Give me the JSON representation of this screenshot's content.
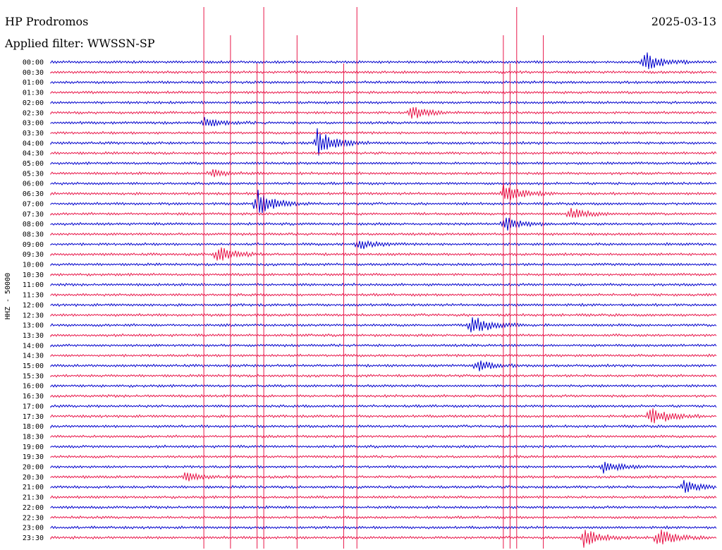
{
  "header": {
    "station": "HP Prodromos",
    "date": "2025-03-13",
    "filter": "Applied filter: WWSSN-SP"
  },
  "chart_data": {
    "type": "line",
    "title": "HP Prodromos",
    "ylabel": "HHZ - 50000",
    "row_labels": [
      "00:00",
      "00:30",
      "01:00",
      "01:30",
      "02:00",
      "02:30",
      "03:00",
      "03:30",
      "04:00",
      "04:30",
      "05:00",
      "05:30",
      "06:00",
      "06:30",
      "07:00",
      "07:30",
      "08:00",
      "08:30",
      "09:00",
      "09:30",
      "10:00",
      "10:30",
      "11:00",
      "11:30",
      "12:00",
      "12:30",
      "13:00",
      "13:30",
      "14:00",
      "14:30",
      "15:00",
      "15:30",
      "16:00",
      "16:30",
      "17:00",
      "17:30",
      "18:00",
      "18:30",
      "19:00",
      "19:30",
      "20:00",
      "20:30",
      "21:00",
      "21:30",
      "22:00",
      "22:30",
      "23:00",
      "23:30"
    ],
    "colors": {
      "odd": "#0000cc",
      "even": "#e8174a"
    },
    "events": [
      {
        "row": "00:00",
        "pos": 0.89,
        "amp": 16,
        "color": "blue"
      },
      {
        "row": "02:30",
        "pos": 0.54,
        "amp": 10,
        "color": "red"
      },
      {
        "row": "03:00",
        "pos": 0.23,
        "amp": 8,
        "color": "blue"
      },
      {
        "row": "04:00",
        "pos": 0.4,
        "amp": 20,
        "color": "blue"
      },
      {
        "row": "05:30",
        "pos": 0.24,
        "amp": 6,
        "color": "red"
      },
      {
        "row": "06:30",
        "pos": 0.68,
        "amp": 16,
        "color": "red"
      },
      {
        "row": "07:00",
        "pos": 0.31,
        "amp": 20,
        "color": "blue"
      },
      {
        "row": "07:30",
        "pos": 0.78,
        "amp": 9,
        "color": "red"
      },
      {
        "row": "08:00",
        "pos": 0.68,
        "amp": 11,
        "color": "blue"
      },
      {
        "row": "09:00",
        "pos": 0.46,
        "amp": 8,
        "color": "blue"
      },
      {
        "row": "09:30",
        "pos": 0.25,
        "amp": 13,
        "color": "red"
      },
      {
        "row": "13:00",
        "pos": 0.63,
        "amp": 18,
        "color": "blue"
      },
      {
        "row": "15:00",
        "pos": 0.64,
        "amp": 8,
        "color": "blue"
      },
      {
        "row": "17:30",
        "pos": 0.9,
        "amp": 17,
        "color": "red"
      },
      {
        "row": "20:00",
        "pos": 0.83,
        "amp": 9,
        "color": "blue"
      },
      {
        "row": "20:30",
        "pos": 0.2,
        "amp": 6,
        "color": "red"
      },
      {
        "row": "21:00",
        "pos": 0.95,
        "amp": 9,
        "color": "blue"
      },
      {
        "row": "23:30",
        "pos": 0.8,
        "amp": 14,
        "color": "red"
      },
      {
        "row": "23:30",
        "pos": 0.91,
        "amp": 14,
        "color": "red"
      }
    ],
    "spikes": [
      0.23,
      0.27,
      0.31,
      0.32,
      0.37,
      0.44,
      0.46,
      0.68,
      0.69,
      0.7,
      0.74
    ]
  }
}
